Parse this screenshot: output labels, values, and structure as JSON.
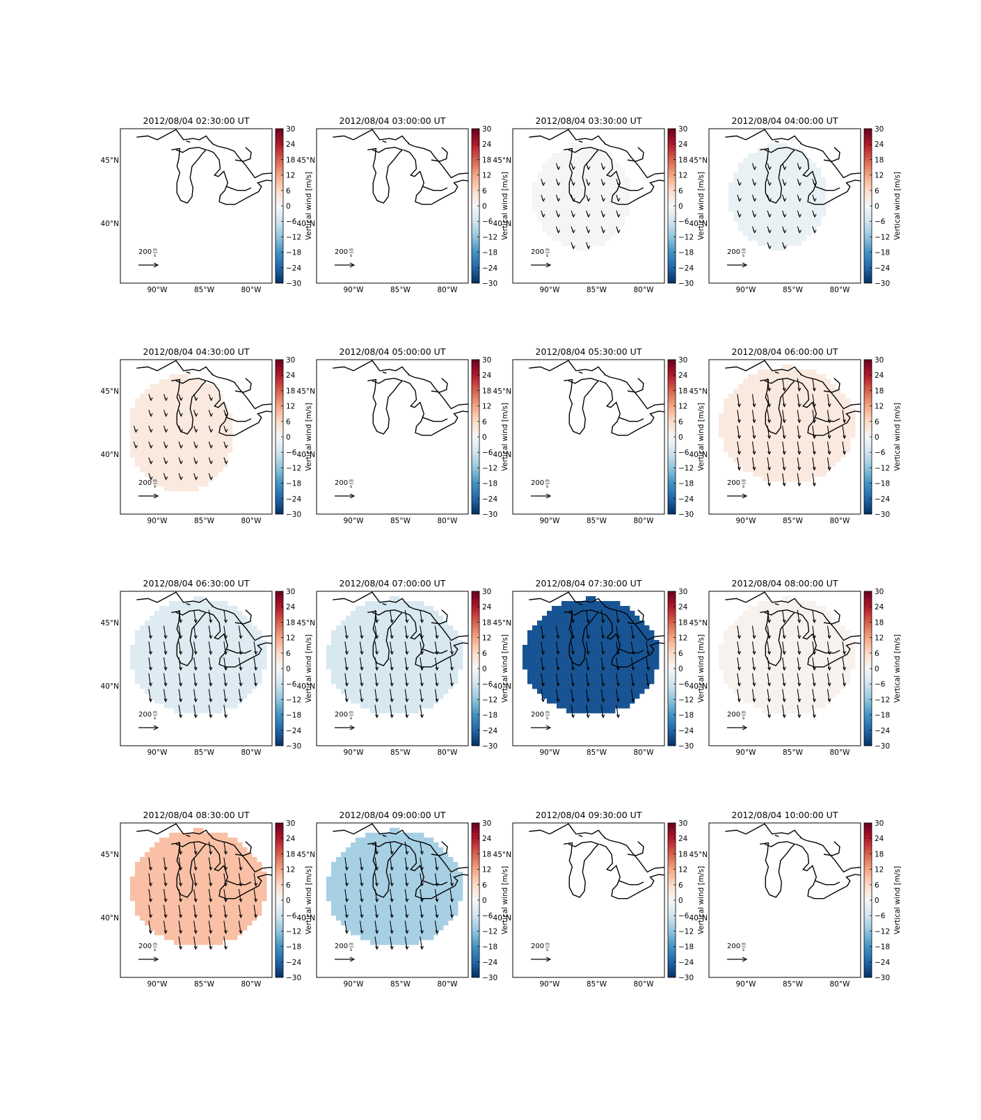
{
  "figure": {
    "colorbar_label": "Vertical wind [m/s]",
    "colorbar_ticks": [
      "30",
      "24",
      "18",
      "12",
      "6",
      "0",
      "−6",
      "−12",
      "−18",
      "−24",
      "−30"
    ],
    "colorbar_range": [
      -30,
      30
    ],
    "colormap": [
      "#67001f",
      "#b2182b",
      "#d6604d",
      "#f4a582",
      "#fddbc7",
      "#f7f7f7",
      "#d1e5f0",
      "#92c5de",
      "#4393c3",
      "#2166ac",
      "#053061"
    ],
    "lon_ticks": [
      "90°W",
      "85°W",
      "80°W"
    ],
    "lat_ticks": [
      "45°N",
      "40°N"
    ],
    "quiver_key_value": "200",
    "quiver_key_unit_num": "m",
    "quiver_key_unit_den": "s",
    "layout": "4 rows × 4 columns of map panels"
  },
  "chart_data": [
    {
      "type": "heatmap",
      "title": "2012/08/04 02:30:00 UT",
      "vertical_wind": null,
      "wind_vectors": false,
      "coverage": "none"
    },
    {
      "type": "heatmap",
      "title": "2012/08/04 03:00:00 UT",
      "vertical_wind": null,
      "wind_vectors": false,
      "coverage": "none"
    },
    {
      "type": "heatmap",
      "title": "2012/08/04 03:30:00 UT",
      "vertical_wind": -0.5,
      "wind_vectors": true,
      "coverage": "small"
    },
    {
      "type": "heatmap",
      "title": "2012/08/04 04:00:00 UT",
      "vertical_wind": -2,
      "wind_vectors": true,
      "coverage": "small"
    },
    {
      "type": "heatmap",
      "title": "2012/08/04 04:30:00 UT",
      "vertical_wind": 3,
      "wind_vectors": true,
      "coverage": "medium"
    },
    {
      "type": "heatmap",
      "title": "2012/08/04 05:00:00 UT",
      "vertical_wind": null,
      "wind_vectors": false,
      "coverage": "none"
    },
    {
      "type": "heatmap",
      "title": "2012/08/04 05:30:00 UT",
      "vertical_wind": null,
      "wind_vectors": false,
      "coverage": "none"
    },
    {
      "type": "heatmap",
      "title": "2012/08/04 06:00:00 UT",
      "vertical_wind": 3,
      "wind_vectors": true,
      "coverage": "large"
    },
    {
      "type": "heatmap",
      "title": "2012/08/04 06:30:00 UT",
      "vertical_wind": -4,
      "wind_vectors": true,
      "coverage": "large"
    },
    {
      "type": "heatmap",
      "title": "2012/08/04 07:00:00 UT",
      "vertical_wind": -5,
      "wind_vectors": true,
      "coverage": "large"
    },
    {
      "type": "heatmap",
      "title": "2012/08/04 07:30:00 UT",
      "vertical_wind": -26,
      "wind_vectors": true,
      "coverage": "large"
    },
    {
      "type": "heatmap",
      "title": "2012/08/04 08:00:00 UT",
      "vertical_wind": 1,
      "wind_vectors": true,
      "coverage": "large"
    },
    {
      "type": "heatmap",
      "title": "2012/08/04 08:30:00 UT",
      "vertical_wind": 9,
      "wind_vectors": true,
      "coverage": "large"
    },
    {
      "type": "heatmap",
      "title": "2012/08/04 09:00:00 UT",
      "vertical_wind": -10,
      "wind_vectors": true,
      "coverage": "large"
    },
    {
      "type": "heatmap",
      "title": "2012/08/04 09:30:00 UT",
      "vertical_wind": null,
      "wind_vectors": false,
      "coverage": "none"
    },
    {
      "type": "heatmap",
      "title": "2012/08/04 10:00:00 UT",
      "vertical_wind": null,
      "wind_vectors": false,
      "coverage": "none"
    }
  ]
}
